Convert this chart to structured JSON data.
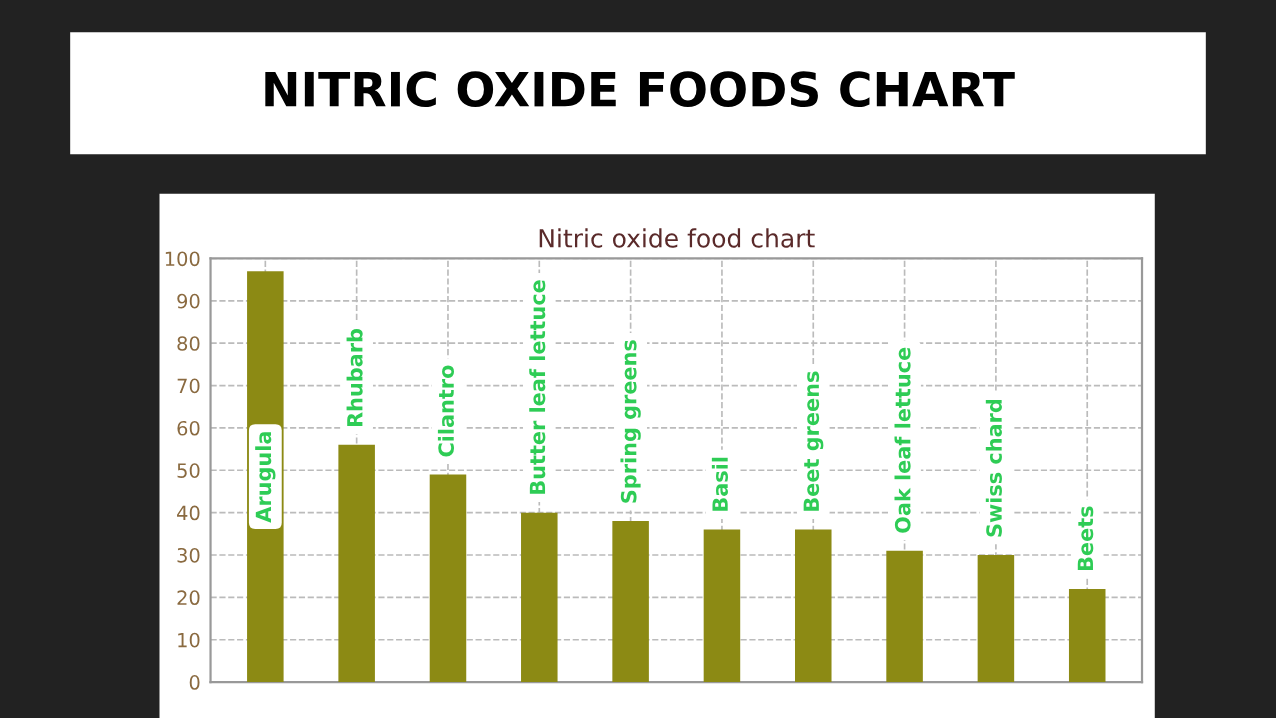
{
  "chart_data": {
    "type": "bar",
    "title": "NITRIC OXIDE FOODS CHART",
    "subtitle": "Nitric oxide food chart",
    "categories": [
      "Arugula",
      "Rhubarb",
      "Cilantro",
      "Butter leaf lettuce",
      "Spring greens",
      "Basil",
      "Beet greens",
      "Oak leaf lettuce",
      "Swiss chard",
      "Beets"
    ],
    "values": [
      97,
      56,
      49,
      40,
      38,
      36,
      36,
      31,
      30,
      22
    ],
    "color": "#8c8a14",
    "ylim": [
      0,
      100
    ],
    "yticks": [
      0,
      10,
      20,
      30,
      40,
      50,
      60,
      70,
      80,
      90,
      100
    ],
    "grid": true
  }
}
